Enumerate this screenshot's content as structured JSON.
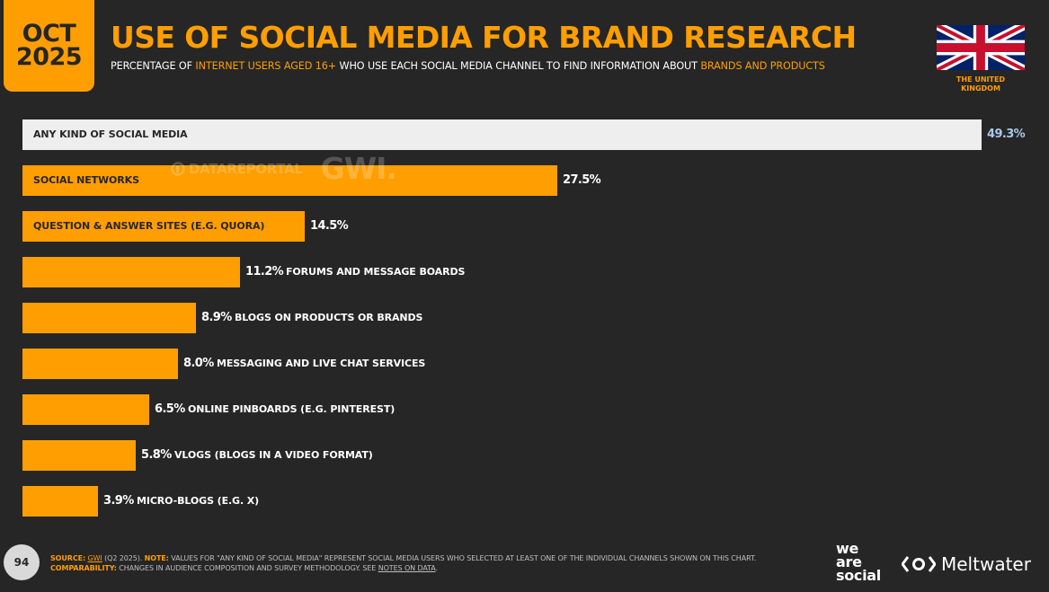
{
  "header": {
    "date_month": "OCT",
    "date_year": "2025",
    "title": "USE OF SOCIAL MEDIA FOR BRAND RESEARCH",
    "subtitle_parts": [
      {
        "text": "PERCENTAGE OF ",
        "highlight": false
      },
      {
        "text": "INTERNET USERS AGED 16+",
        "highlight": true
      },
      {
        "text": " WHO USE EACH SOCIAL MEDIA CHANNEL TO FIND INFORMATION ABOUT ",
        "highlight": false
      },
      {
        "text": "BRANDS AND PRODUCTS",
        "highlight": true
      }
    ],
    "country_line1": "THE UNITED",
    "country_line2": "KINGDOM"
  },
  "watermark": {
    "datareportal": "DATAREPORTAL",
    "gwi": "GWI."
  },
  "chart_data": {
    "type": "bar",
    "orientation": "horizontal",
    "categories": [
      "ANY KIND OF SOCIAL MEDIA",
      "SOCIAL NETWORKS",
      "QUESTION & ANSWER SITES (E.G. QUORA)",
      "FORUMS AND MESSAGE BOARDS",
      "BLOGS ON PRODUCTS OR BRANDS",
      "MESSAGING AND LIVE CHAT SERVICES",
      "ONLINE PINBOARDS (E.G. PINTEREST)",
      "VLOGS (BLOGS IN A VIDEO FORMAT)",
      "MICRO-BLOGS (E.G. X)"
    ],
    "values": [
      49.3,
      27.5,
      14.5,
      11.2,
      8.9,
      8.0,
      6.5,
      5.8,
      3.9
    ],
    "value_labels": [
      "49.3%",
      "27.5%",
      "14.5%",
      "11.2%",
      "8.9%",
      "8.0%",
      "6.5%",
      "5.8%",
      "3.9%"
    ],
    "highlight_index": 0,
    "title": "USE OF SOCIAL MEDIA FOR BRAND RESEARCH",
    "xlabel": "",
    "ylabel": "",
    "xlim": [
      0,
      49.3
    ],
    "grid": false,
    "legend": "none",
    "colors": {
      "total": "#eeeeee",
      "bar": "#ff9e00",
      "total_value": "#a9c8f0"
    }
  },
  "footer": {
    "page_number": "94",
    "source_key": "SOURCE:",
    "source_link": "GWI",
    "source_rest": " (Q2 2025). ",
    "note_key": "NOTE:",
    "note_text": " VALUES FOR \"ANY KIND OF SOCIAL MEDIA\" REPRESENT SOCIAL MEDIA USERS WHO SELECTED AT LEAST ONE OF THE INDIVIDUAL CHANNELS SHOWN ON THIS CHART.",
    "comp_key": "COMPARABILITY:",
    "comp_text": " CHANGES IN AUDIENCE COMPOSITION AND SURVEY METHODOLOGY. SEE ",
    "comp_link": "NOTES ON DATA",
    "comp_end": "."
  },
  "brands": {
    "was_line1": "we",
    "was_line2": "are",
    "was_line3": "social",
    "meltwater": "Meltwater"
  }
}
